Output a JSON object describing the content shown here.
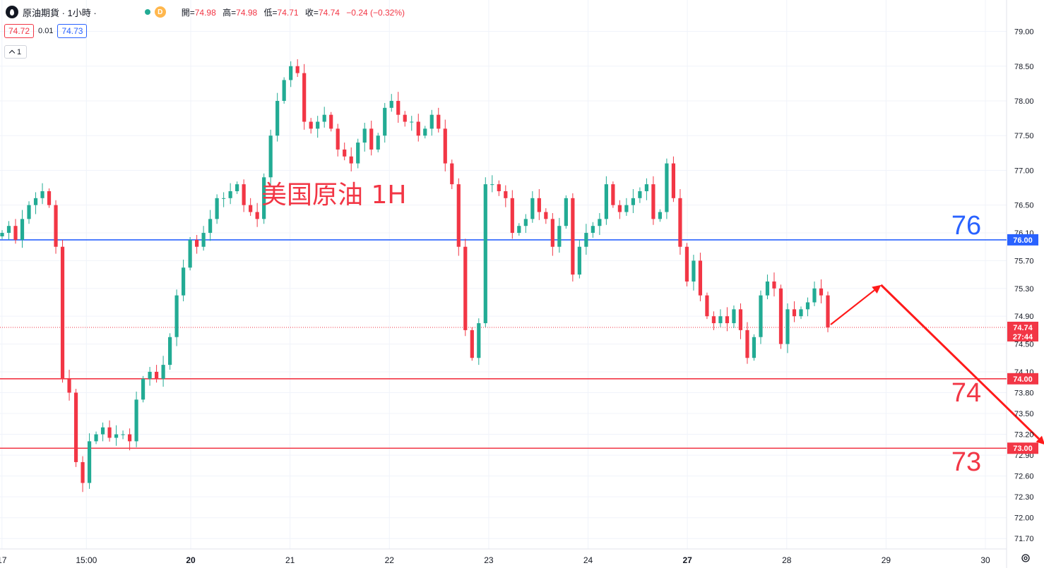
{
  "header": {
    "symbol_title": "原油期貨 · 1小時 ·",
    "session_badge": "D",
    "ohlc": {
      "open_label": "開=",
      "open": "74.98",
      "high_label": "高=",
      "high": "74.98",
      "low_label": "低=",
      "low": "74.71",
      "close_label": "收=",
      "close": "74.74",
      "change": "−0.24 (−0.32%)"
    }
  },
  "quote": {
    "bid": "74.72",
    "spread": "0.01",
    "ask": "74.73"
  },
  "indicator_toggle": "1",
  "colors": {
    "up": "#22ab94",
    "down": "#f23645",
    "level_blue": "#2962ff",
    "level_red": "#f23645",
    "arrow": "#ff1a1a",
    "grid": "#f0f3fa",
    "text": "#131722"
  },
  "chart_data": {
    "type": "candlestick",
    "annotation_title": "美国原油 1H",
    "y_ticks": [
      "79.00",
      "78.50",
      "78.00",
      "77.50",
      "77.00",
      "76.50",
      "76.10",
      "75.70",
      "75.30",
      "74.90",
      "74.50",
      "74.10",
      "73.80",
      "73.50",
      "73.20",
      "72.90",
      "72.60",
      "72.30",
      "72.00",
      "71.70"
    ],
    "ylim": [
      71.55,
      79.3
    ],
    "x_ticks": [
      {
        "label": "17",
        "day": 1.1,
        "bold": false
      },
      {
        "label": "15:00",
        "day": 1.95,
        "bold": false
      },
      {
        "label": "20",
        "day": 3.0,
        "bold": true
      },
      {
        "label": "21",
        "day": 4.0,
        "bold": false
      },
      {
        "label": "22",
        "day": 5.0,
        "bold": false
      },
      {
        "label": "23",
        "day": 6.0,
        "bold": false
      },
      {
        "label": "24",
        "day": 7.0,
        "bold": false
      },
      {
        "label": "27",
        "day": 8.0,
        "bold": true
      },
      {
        "label": "28",
        "day": 9.0,
        "bold": false
      },
      {
        "label": "29",
        "day": 10.0,
        "bold": false
      },
      {
        "label": "30",
        "day": 11.0,
        "bold": false
      }
    ],
    "horizontal_levels": [
      {
        "name": "76",
        "price": 76.0,
        "axis_label": "76.00",
        "color": "#2962ff"
      },
      {
        "name": "74",
        "price": 74.0,
        "axis_label": "74.00",
        "color": "#f23645"
      },
      {
        "name": "73",
        "price": 73.0,
        "axis_label": "73.00",
        "color": "#f23645"
      }
    ],
    "last_price": {
      "price": 74.74,
      "label": "74.74",
      "countdown": "27:44"
    },
    "projection_path": [
      {
        "day": 8.8,
        "price": 74.78
      },
      {
        "day": 9.95,
        "price": 75.35
      },
      {
        "day": 11.6,
        "price": 73.05
      }
    ],
    "closes": [
      76.1,
      76.2,
      76.0,
      76.3,
      76.5,
      76.6,
      76.7,
      76.5,
      75.9,
      74.0,
      73.8,
      72.8,
      72.5,
      73.1,
      73.2,
      73.3,
      73.15,
      73.2,
      73.2,
      73.1,
      73.7,
      74.0,
      74.1,
      74.0,
      74.2,
      74.6,
      75.2,
      75.6,
      76.0,
      75.9,
      76.1,
      76.3,
      76.6,
      76.6,
      76.7,
      76.8,
      76.5,
      76.4,
      76.3,
      76.9,
      77.5,
      78.0,
      78.3,
      78.5,
      78.4,
      77.7,
      77.6,
      77.7,
      77.8,
      77.6,
      77.3,
      77.2,
      77.1,
      77.4,
      77.6,
      77.3,
      77.5,
      77.9,
      78.0,
      77.8,
      77.7,
      77.7,
      77.5,
      77.6,
      77.8,
      77.6,
      77.1,
      76.8,
      75.9,
      74.7,
      74.3,
      74.8,
      76.8,
      76.8,
      76.7,
      76.6,
      76.1,
      76.2,
      76.3,
      76.6,
      76.4,
      76.3,
      75.9,
      76.2,
      76.6,
      75.5,
      75.9,
      76.1,
      76.2,
      76.3,
      76.8,
      76.5,
      76.4,
      76.5,
      76.6,
      76.7,
      76.8,
      76.3,
      76.4,
      77.1,
      76.6,
      75.9,
      75.4,
      75.7,
      75.2,
      74.9,
      74.8,
      74.9,
      74.8,
      75.0,
      74.7,
      74.3,
      74.6,
      75.2,
      75.4,
      75.3,
      74.5,
      75.0,
      74.9,
      75.0,
      75.1,
      75.3,
      75.2,
      74.74
    ]
  }
}
